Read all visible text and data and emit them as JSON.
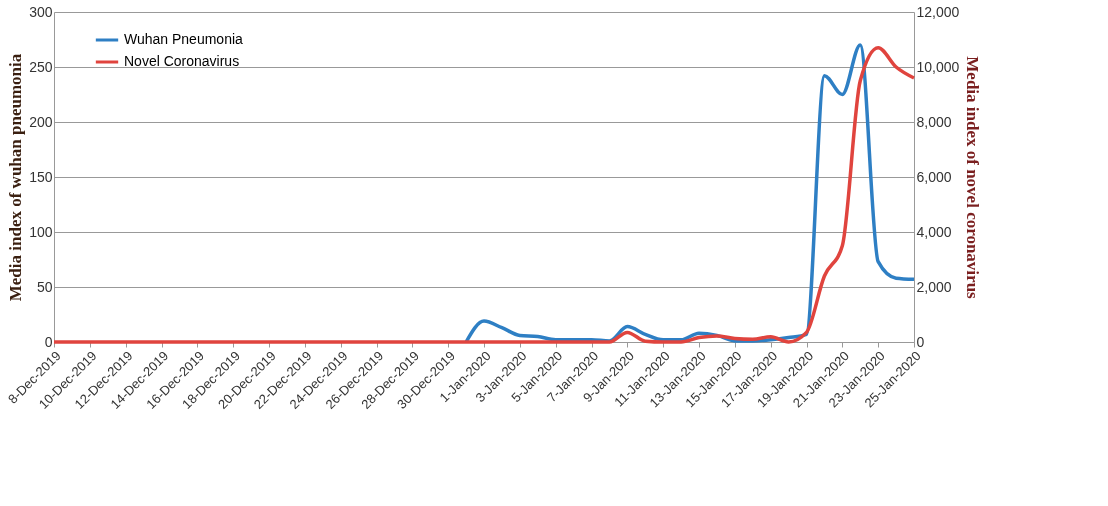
{
  "chart_data": {
    "type": "line",
    "ylabel": "Media index of wuhan pneumonia",
    "y2label": "Media index of novel coronavirus",
    "categories": [
      "8-Dec-2019",
      null,
      "10-Dec-2019",
      null,
      "12-Dec-2019",
      null,
      "14-Dec-2019",
      null,
      "16-Dec-2019",
      null,
      "18-Dec-2019",
      null,
      "20-Dec-2019",
      null,
      "22-Dec-2019",
      null,
      "24-Dec-2019",
      null,
      "26-Dec-2019",
      null,
      "28-Dec-2019",
      null,
      "30-Dec-2019",
      null,
      "1-Jan-2020",
      null,
      "3-Jan-2020",
      null,
      "5-Jan-2020",
      null,
      "7-Jan-2020",
      null,
      "9-Jan-2020",
      null,
      "11-Jan-2020",
      null,
      "13-Jan-2020",
      null,
      "15-Jan-2020",
      null,
      "17-Jan-2020",
      null,
      "19-Jan-2020",
      null,
      "21-Jan-2020",
      null,
      "23-Jan-2020",
      null,
      "25-Jan-2020"
    ],
    "series": [
      {
        "name": "Wuhan Pneumonia",
        "color": "#2e7fc4",
        "values": [
          null,
          null,
          null,
          null,
          null,
          null,
          null,
          null,
          null,
          null,
          null,
          null,
          null,
          null,
          null,
          null,
          null,
          null,
          null,
          null,
          null,
          null,
          null,
          0,
          19,
          13,
          6,
          5,
          2,
          2,
          2,
          1,
          14,
          7,
          2,
          2,
          8,
          6,
          1,
          1,
          2,
          4,
          7,
          242,
          225,
          270,
          73,
          58,
          57
        ]
      },
      {
        "name": "Novel Coronavirus",
        "color": "#e0443e",
        "axis": "y2",
        "values": [
          0,
          0,
          0,
          0,
          0,
          0,
          0,
          0,
          0,
          0,
          0,
          0,
          0,
          0,
          0,
          0,
          0,
          0,
          0,
          0,
          0,
          0,
          0,
          0,
          0,
          0,
          0,
          0,
          0,
          0,
          0,
          0,
          350,
          30,
          0,
          0,
          160,
          220,
          130,
          100,
          190,
          0,
          350,
          2400,
          3500,
          9500,
          10700,
          10000,
          9600
        ]
      }
    ],
    "ylim": [
      0,
      300
    ],
    "yticks": [
      0,
      50,
      100,
      150,
      200,
      250,
      300
    ],
    "y2lim": [
      0,
      12000
    ],
    "y2ticks": [
      {
        "value": 0,
        "label": "0"
      },
      {
        "value": 2000,
        "label": "2,000"
      },
      {
        "value": 4000,
        "label": "4,000"
      },
      {
        "value": 6000,
        "label": "6,000"
      },
      {
        "value": 8000,
        "label": "8,000"
      },
      {
        "value": 10000,
        "label": "10,000"
      },
      {
        "value": 12000,
        "label": "12,000"
      }
    ],
    "grid": "y",
    "legend": "top left",
    "line_style": "solid",
    "marker": "none"
  }
}
